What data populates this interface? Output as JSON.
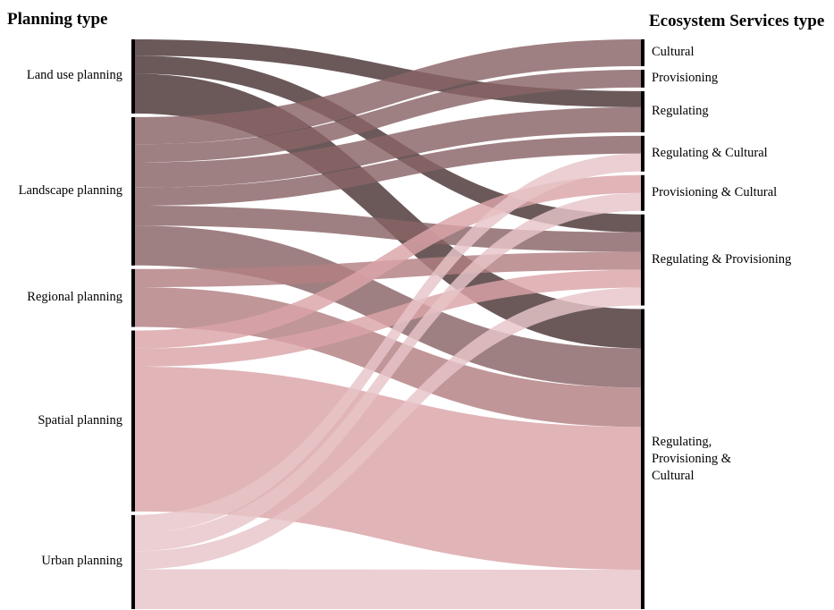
{
  "headings": {
    "left": "Planning type",
    "right": "Ecosystem Services type"
  },
  "sources": [
    {
      "id": "land",
      "label": "Land use planning",
      "color": "#4b3436"
    },
    {
      "id": "landscape",
      "label": "Landscape planning",
      "color": "#8a6467"
    },
    {
      "id": "regional",
      "label": "Regional planning",
      "color": "#b27f82"
    },
    {
      "id": "spatial",
      "label": "Spatial planning",
      "color": "#dba4a8"
    },
    {
      "id": "urban",
      "label": "Urban planning",
      "color": "#e7c5c8"
    }
  ],
  "targets": [
    {
      "id": "cult",
      "label": "Cultural"
    },
    {
      "id": "prov",
      "label": "Provisioning"
    },
    {
      "id": "reg",
      "label": "Regulating"
    },
    {
      "id": "rc",
      "label": "Regulating & Cultural"
    },
    {
      "id": "pc",
      "label": "Provisioning & Cultural"
    },
    {
      "id": "rp",
      "label": "Regulating & Provisioning"
    },
    {
      "id": "rpc",
      "label": "Regulating,\nProvisioning &\nCultural"
    }
  ],
  "flows": [
    {
      "source": "land",
      "target": "reg",
      "value": 0.9
    },
    {
      "source": "land",
      "target": "rp",
      "value": 1.0
    },
    {
      "source": "land",
      "target": "rpc",
      "value": 2.2
    },
    {
      "source": "landscape",
      "target": "cult",
      "value": 1.5
    },
    {
      "source": "landscape",
      "target": "prov",
      "value": 1.0
    },
    {
      "source": "landscape",
      "target": "reg",
      "value": 1.4
    },
    {
      "source": "landscape",
      "target": "rc",
      "value": 1.0
    },
    {
      "source": "landscape",
      "target": "rp",
      "value": 1.1
    },
    {
      "source": "landscape",
      "target": "rpc",
      "value": 2.2
    },
    {
      "source": "regional",
      "target": "rp",
      "value": 1.0
    },
    {
      "source": "regional",
      "target": "rpc",
      "value": 2.2
    },
    {
      "source": "spatial",
      "target": "pc",
      "value": 1.0
    },
    {
      "source": "spatial",
      "target": "rp",
      "value": 1.0
    },
    {
      "source": "spatial",
      "target": "rpc",
      "value": 8.0
    },
    {
      "source": "urban",
      "target": "rc",
      "value": 1.0
    },
    {
      "source": "urban",
      "target": "pc",
      "value": 1.0
    },
    {
      "source": "urban",
      "target": "rp",
      "value": 1.0
    },
    {
      "source": "urban",
      "target": "rpc",
      "value": 2.2
    }
  ]
}
